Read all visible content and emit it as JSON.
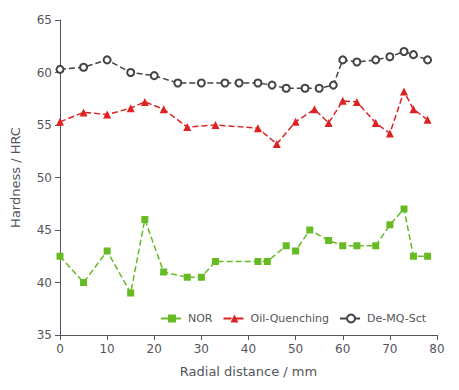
{
  "chart_data": {
    "type": "line",
    "xlabel": "Radial distance / mm",
    "ylabel": "Hardness / HRC",
    "xlim": [
      0,
      80
    ],
    "xticks": [
      0,
      10,
      20,
      30,
      40,
      50,
      60,
      70,
      80
    ],
    "ylim": [
      35,
      65
    ],
    "yticks": [
      35,
      40,
      45,
      50,
      55,
      60,
      65
    ],
    "grid": false,
    "legend": "lower right",
    "series": [
      {
        "name": "NOR",
        "color": "#66bb22",
        "marker": "square",
        "line_style": "dashed",
        "x": [
          0,
          5,
          10,
          15,
          18,
          22,
          27,
          30,
          33,
          42,
          44,
          48,
          50,
          53,
          57,
          60,
          63,
          67,
          70,
          73,
          75,
          78
        ],
        "values": [
          42.5,
          40.0,
          43.0,
          39.0,
          46.0,
          41.0,
          40.5,
          40.5,
          42.0,
          42.0,
          42.0,
          43.5,
          43.0,
          45.0,
          44.0,
          43.5,
          43.5,
          43.5,
          45.5,
          47.0,
          42.5,
          42.5
        ]
      },
      {
        "name": "Oil-Quenching",
        "color": "#dd2222",
        "marker": "triangle",
        "line_style": "dashed",
        "x": [
          0,
          5,
          10,
          15,
          18,
          22,
          27,
          33,
          42,
          46,
          50,
          54,
          57,
          60,
          63,
          67,
          70,
          73,
          75,
          78
        ],
        "values": [
          55.3,
          56.2,
          56.0,
          56.6,
          57.2,
          56.5,
          54.8,
          55.0,
          54.7,
          53.2,
          55.3,
          56.5,
          55.2,
          57.3,
          57.2,
          55.2,
          54.2,
          58.2,
          56.5,
          55.5
        ]
      },
      {
        "name": "De-MQ-Sct",
        "color": "#444444",
        "marker": "open-circle",
        "line_style": "dashed",
        "x": [
          0,
          5,
          10,
          15,
          20,
          25,
          30,
          35,
          38,
          42,
          45,
          48,
          52,
          55,
          58,
          60,
          63,
          67,
          70,
          73,
          75,
          78
        ],
        "values": [
          60.3,
          60.5,
          61.2,
          60.0,
          59.7,
          59.0,
          59.0,
          59.0,
          59.0,
          59.0,
          58.8,
          58.5,
          58.5,
          58.5,
          58.8,
          61.2,
          61.0,
          61.2,
          61.5,
          62.0,
          61.7,
          61.2
        ]
      }
    ]
  }
}
